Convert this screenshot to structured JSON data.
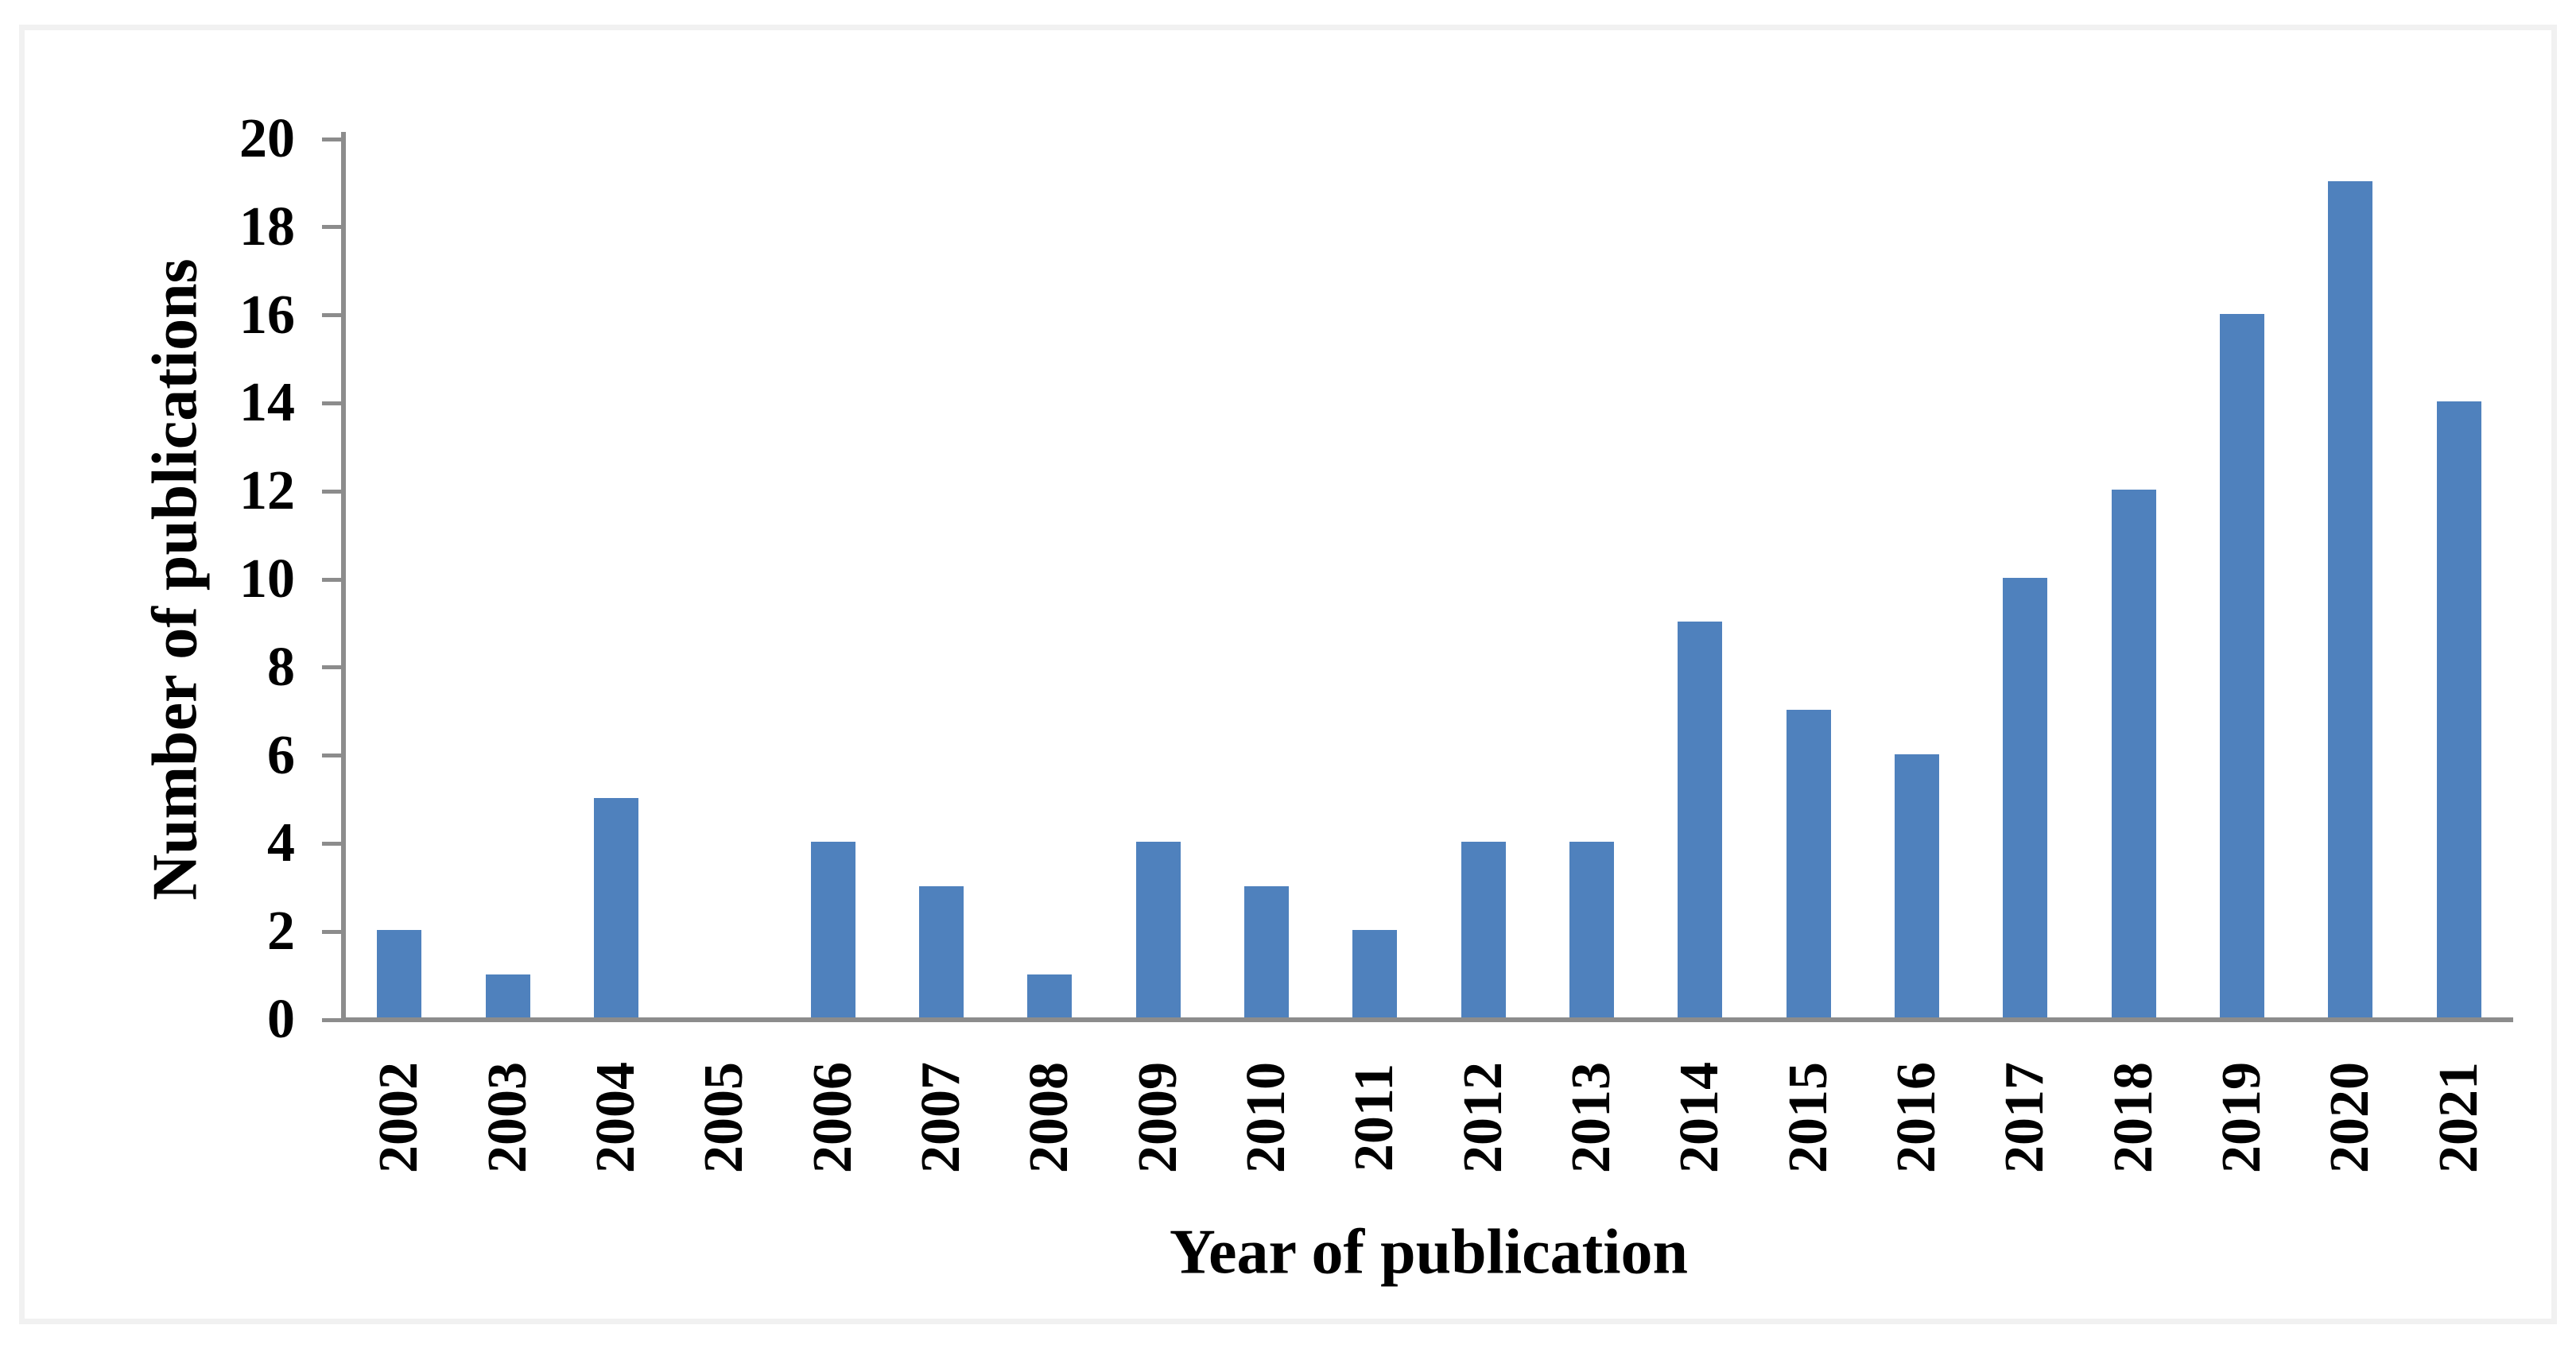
{
  "figure": {
    "background": "#ffffff",
    "frame_color": "#f1f1f1"
  },
  "chart_data": {
    "type": "bar",
    "title": "",
    "xlabel": "Year of publication",
    "ylabel": "Number of publications",
    "categories": [
      "2002",
      "2003",
      "2004",
      "2005",
      "2006",
      "2007",
      "2008",
      "2009",
      "2010",
      "2011",
      "2012",
      "2013",
      "2014",
      "2015",
      "2016",
      "2017",
      "2018",
      "2019",
      "2020",
      "2021"
    ],
    "values": [
      2,
      1,
      5,
      0,
      4,
      3,
      1,
      4,
      3,
      2,
      4,
      4,
      9,
      7,
      6,
      10,
      12,
      16,
      19,
      14
    ],
    "ylim": [
      0,
      20
    ],
    "ytick_step": 2,
    "ytick_labels": [
      "0",
      "2",
      "4",
      "6",
      "8",
      "10",
      "12",
      "14",
      "16",
      "18",
      "20"
    ],
    "grid": false,
    "legend_position": "none",
    "bar_color": "#4F81BD",
    "axis_color": "#8C8C8C",
    "text_color": "#000000"
  }
}
